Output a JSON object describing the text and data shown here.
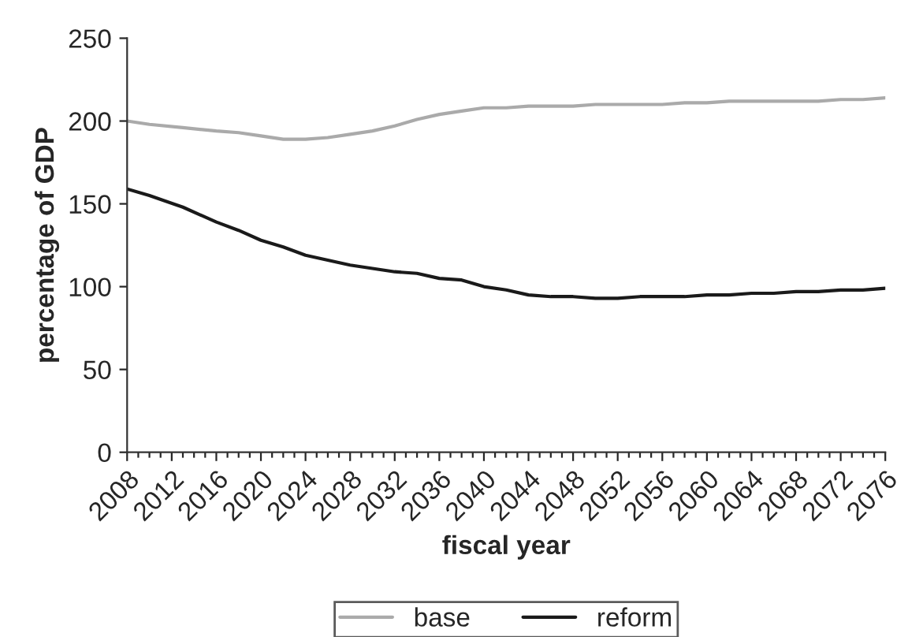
{
  "chart_data": {
    "type": "line",
    "xlabel": "fiscal year",
    "ylabel": "percentage of GDP",
    "x": [
      2008,
      2010,
      2013,
      2016,
      2018,
      2020,
      2022,
      2024,
      2026,
      2028,
      2030,
      2032,
      2034,
      2036,
      2038,
      2040,
      2042,
      2044,
      2046,
      2048,
      2050,
      2052,
      2054,
      2056,
      2058,
      2060,
      2062,
      2064,
      2066,
      2068,
      2070,
      2072,
      2074,
      2076
    ],
    "series": [
      {
        "name": "base",
        "color": "#aaaaaa",
        "values": [
          200,
          198,
          196,
          194,
          193,
          191,
          189,
          189,
          190,
          192,
          194,
          197,
          201,
          204,
          206,
          208,
          208,
          209,
          209,
          209,
          210,
          210,
          210,
          210,
          211,
          211,
          212,
          212,
          212,
          212,
          212,
          213,
          213,
          214
        ]
      },
      {
        "name": "reform",
        "color": "#1a1a1a",
        "values": [
          159,
          155,
          148,
          139,
          134,
          128,
          124,
          119,
          116,
          113,
          111,
          109,
          108,
          105,
          104,
          100,
          98,
          95,
          94,
          94,
          93,
          93,
          94,
          94,
          94,
          95,
          95,
          96,
          96,
          97,
          97,
          98,
          98,
          99
        ]
      }
    ],
    "xlim": [
      2008,
      2076
    ],
    "xticks": [
      2008,
      {
        "value": 2009,
        "label": null
      },
      {
        "value": 2010,
        "label": null
      },
      {
        "value": 2011,
        "label": null
      },
      2012,
      {
        "value": 2013,
        "label": null
      },
      {
        "value": 2014,
        "label": null
      },
      {
        "value": 2015,
        "label": null
      },
      2016,
      {
        "value": 2017,
        "label": null
      },
      {
        "value": 2018,
        "label": null
      },
      {
        "value": 2019,
        "label": null
      },
      2020,
      {
        "value": 2021,
        "label": null
      },
      {
        "value": 2022,
        "label": null
      },
      {
        "value": 2023,
        "label": null
      },
      2024,
      {
        "value": 2025,
        "label": null
      },
      {
        "value": 2026,
        "label": null
      },
      {
        "value": 2027,
        "label": null
      },
      2028,
      {
        "value": 2029,
        "label": null
      },
      {
        "value": 2030,
        "label": null
      },
      {
        "value": 2031,
        "label": null
      },
      2032,
      {
        "value": 2033,
        "label": null
      },
      {
        "value": 2034,
        "label": null
      },
      {
        "value": 2035,
        "label": null
      },
      2036,
      {
        "value": 2037,
        "label": null
      },
      {
        "value": 2038,
        "label": null
      },
      {
        "value": 2039,
        "label": null
      },
      2040,
      {
        "value": 2041,
        "label": null
      },
      {
        "value": 2042,
        "label": null
      },
      {
        "value": 2043,
        "label": null
      },
      2044,
      {
        "value": 2045,
        "label": null
      },
      {
        "value": 2046,
        "label": null
      },
      {
        "value": 2047,
        "label": null
      },
      2048,
      {
        "value": 2049,
        "label": null
      },
      {
        "value": 2050,
        "label": null
      },
      {
        "value": 2051,
        "label": null
      },
      2052,
      {
        "value": 2053,
        "label": null
      },
      {
        "value": 2054,
        "label": null
      },
      {
        "value": 2055,
        "label": null
      },
      2056,
      {
        "value": 2057,
        "label": null
      },
      {
        "value": 2058,
        "label": null
      },
      {
        "value": 2059,
        "label": null
      },
      2060,
      {
        "value": 2061,
        "label": null
      },
      {
        "value": 2062,
        "label": null
      },
      {
        "value": 2063,
        "label": null
      },
      2064,
      {
        "value": 2065,
        "label": null
      },
      {
        "value": 2066,
        "label": null
      },
      {
        "value": 2067,
        "label": null
      },
      2068,
      {
        "value": 2069,
        "label": null
      },
      {
        "value": 2070,
        "label": null
      },
      {
        "value": 2071,
        "label": null
      },
      2072,
      {
        "value": 2073,
        "label": null
      },
      {
        "value": 2074,
        "label": null
      },
      {
        "value": 2075,
        "label": null
      },
      2076
    ],
    "ylim": [
      0,
      250
    ],
    "yticks": [
      0,
      50,
      100,
      150,
      200,
      250
    ],
    "grid": false,
    "legend": "bottom",
    "marker": "none",
    "line_style": "solid"
  }
}
